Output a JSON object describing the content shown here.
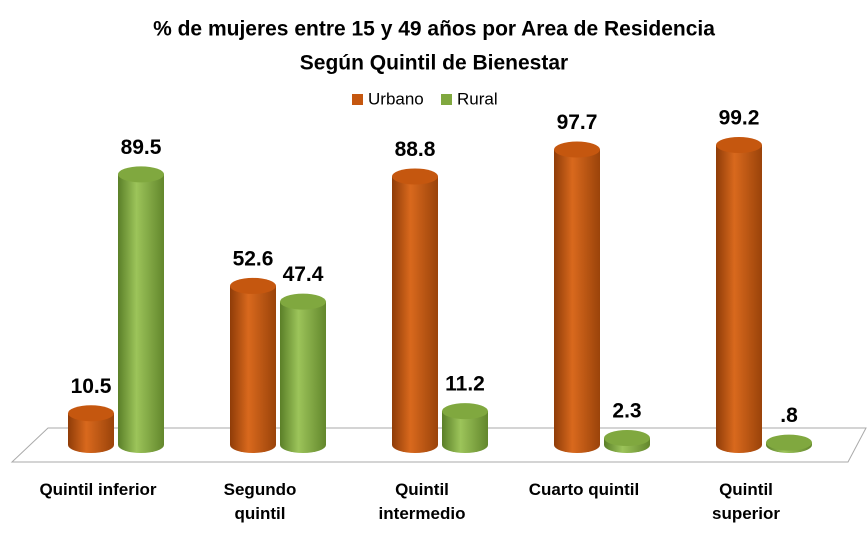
{
  "chart_data": {
    "type": "bar3d",
    "title": "% de mujeres entre 15 y 49 años por Area de Residencia",
    "subtitle": "Según  Quintil de Bienestar",
    "categories": [
      "Quintil inferior",
      "Segundo quintil",
      "Quintil intermedio",
      "Cuarto quintil",
      "Quintil superior"
    ],
    "series": [
      {
        "name": "Urbano",
        "color": "#c5570f",
        "values": [
          10.5,
          52.6,
          88.8,
          97.7,
          99.2
        ]
      },
      {
        "name": "Rural",
        "color": "#80a83f",
        "values": [
          89.5,
          47.4,
          11.2,
          2.3,
          0.8
        ],
        "value_labels": [
          "89.5",
          "47.4",
          "11.2",
          "2.3",
          ".8"
        ]
      }
    ],
    "legend": "top"
  }
}
